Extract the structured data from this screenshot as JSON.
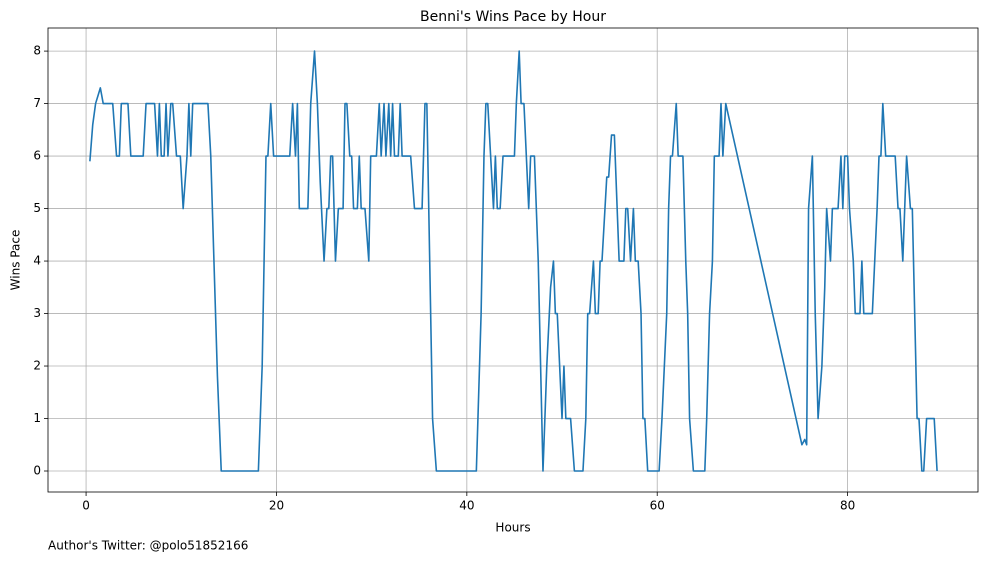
{
  "chart_data": {
    "type": "line",
    "title": "Benni's Wins Pace by Hour",
    "x_label": "Hours",
    "y_label": "Wins Pace",
    "footer": "Author's Twitter: @polo51852166",
    "color": "#1f77b4",
    "grid": true,
    "xlim": [
      -4.0,
      93.7
    ],
    "ylim": [
      -0.4,
      8.44
    ],
    "xticks": [
      0,
      20,
      40,
      60,
      80
    ],
    "yticks": [
      0,
      1,
      2,
      3,
      4,
      5,
      6,
      7,
      8
    ],
    "x": [
      0.4,
      0.7,
      1.0,
      1.5,
      1.8,
      2.8,
      3.2,
      3.5,
      3.7,
      4.4,
      4.7,
      6.0,
      6.3,
      7.2,
      7.5,
      7.7,
      7.9,
      8.2,
      8.4,
      8.6,
      8.9,
      9.1,
      9.5,
      9.9,
      10.2,
      10.6,
      10.8,
      11.0,
      11.2,
      12.8,
      13.1,
      13.8,
      14.2,
      18.1,
      18.5,
      18.9,
      19.1,
      19.4,
      19.7,
      21.4,
      21.7,
      22.0,
      22.2,
      22.4,
      23.3,
      23.6,
      24.0,
      24.3,
      24.6,
      25.0,
      25.3,
      25.5,
      25.7,
      25.9,
      26.2,
      26.5,
      27.0,
      27.2,
      27.4,
      27.7,
      27.9,
      28.1,
      28.5,
      28.7,
      28.9,
      29.3,
      29.7,
      29.9,
      30.5,
      30.8,
      31.0,
      31.3,
      31.5,
      31.8,
      32.0,
      32.2,
      32.4,
      32.8,
      33.0,
      33.2,
      34.1,
      34.5,
      35.3,
      35.6,
      35.8,
      36.1,
      36.4,
      36.8,
      41.0,
      41.5,
      41.8,
      42.0,
      42.2,
      42.5,
      42.8,
      43.0,
      43.2,
      43.5,
      43.8,
      45.0,
      45.2,
      45.5,
      45.7,
      46.0,
      46.5,
      46.7,
      47.1,
      47.5,
      48.0,
      48.4,
      48.8,
      49.1,
      49.3,
      49.5,
      50.0,
      50.2,
      50.4,
      50.9,
      51.3,
      52.2,
      52.5,
      52.7,
      52.9,
      53.3,
      53.5,
      53.8,
      54.0,
      54.2,
      54.7,
      54.9,
      55.2,
      55.5,
      56.0,
      56.5,
      56.7,
      56.9,
      57.2,
      57.5,
      57.7,
      58.0,
      58.3,
      58.5,
      58.7,
      59.0,
      60.2,
      60.5,
      61.0,
      61.2,
      61.4,
      61.6,
      62.0,
      62.2,
      62.7,
      63.0,
      63.2,
      63.4,
      63.8,
      65.0,
      65.2,
      65.5,
      65.8,
      66.0,
      66.5,
      66.7,
      66.9,
      67.2,
      75.2,
      75.5,
      75.7,
      75.9,
      76.3,
      76.6,
      76.9,
      77.3,
      77.6,
      77.8,
      78.2,
      78.4,
      79.0,
      79.3,
      79.5,
      79.7,
      80.0,
      80.2,
      80.6,
      80.8,
      81.3,
      81.5,
      81.7,
      82.6,
      83.1,
      83.3,
      83.5,
      83.7,
      84.0,
      85.0,
      85.3,
      85.5,
      85.8,
      86.0,
      86.2,
      86.6,
      86.8,
      87.3,
      87.5,
      87.8,
      88.0,
      88.3,
      89.1,
      89.4
    ],
    "values": [
      5.9,
      6.6,
      7.0,
      7.3,
      7.0,
      7.0,
      6,
      6,
      7,
      7,
      6,
      6,
      7,
      7,
      6,
      7,
      6,
      6,
      7,
      6,
      7,
      7,
      6,
      6,
      5,
      6,
      7,
      6,
      7,
      7,
      6,
      1.8,
      0,
      0,
      2,
      6,
      6,
      7,
      6,
      6,
      7,
      6,
      7,
      5,
      5,
      7,
      8,
      7,
      5.5,
      4,
      5,
      5,
      6,
      6,
      4,
      5,
      5,
      7,
      7,
      6,
      6,
      5,
      5,
      6,
      5,
      5,
      4,
      6,
      6,
      7,
      6,
      7,
      6,
      7,
      6,
      7,
      6,
      6,
      7,
      6,
      6,
      5,
      5,
      7,
      7,
      4,
      1,
      0,
      0,
      3,
      6,
      7,
      7,
      6,
      5,
      6,
      5,
      5,
      6,
      6,
      7,
      8,
      7,
      7,
      5,
      6,
      6,
      4,
      0,
      2,
      3.5,
      4,
      3,
      3,
      1,
      2,
      1,
      1,
      0,
      0,
      1,
      3,
      3,
      4,
      3,
      3,
      4,
      4,
      5.6,
      5.6,
      6.4,
      6.4,
      4,
      4,
      5,
      5,
      4,
      5,
      4,
      4,
      3,
      1,
      1,
      0,
      0,
      1,
      3,
      5,
      6,
      6,
      7,
      6,
      6,
      4,
      3,
      1,
      0,
      0,
      1,
      3,
      4,
      6,
      6,
      7,
      6,
      7,
      0.5,
      0.6,
      0.5,
      5,
      6,
      3,
      1,
      2,
      3.5,
      5,
      4,
      5,
      5,
      6,
      5,
      6,
      6,
      5,
      4,
      3,
      3,
      4,
      3,
      3,
      5,
      6,
      6,
      7,
      6,
      6,
      5,
      5,
      4,
      5,
      6,
      5,
      5,
      1,
      1,
      0,
      0,
      1,
      1,
      0
    ]
  }
}
